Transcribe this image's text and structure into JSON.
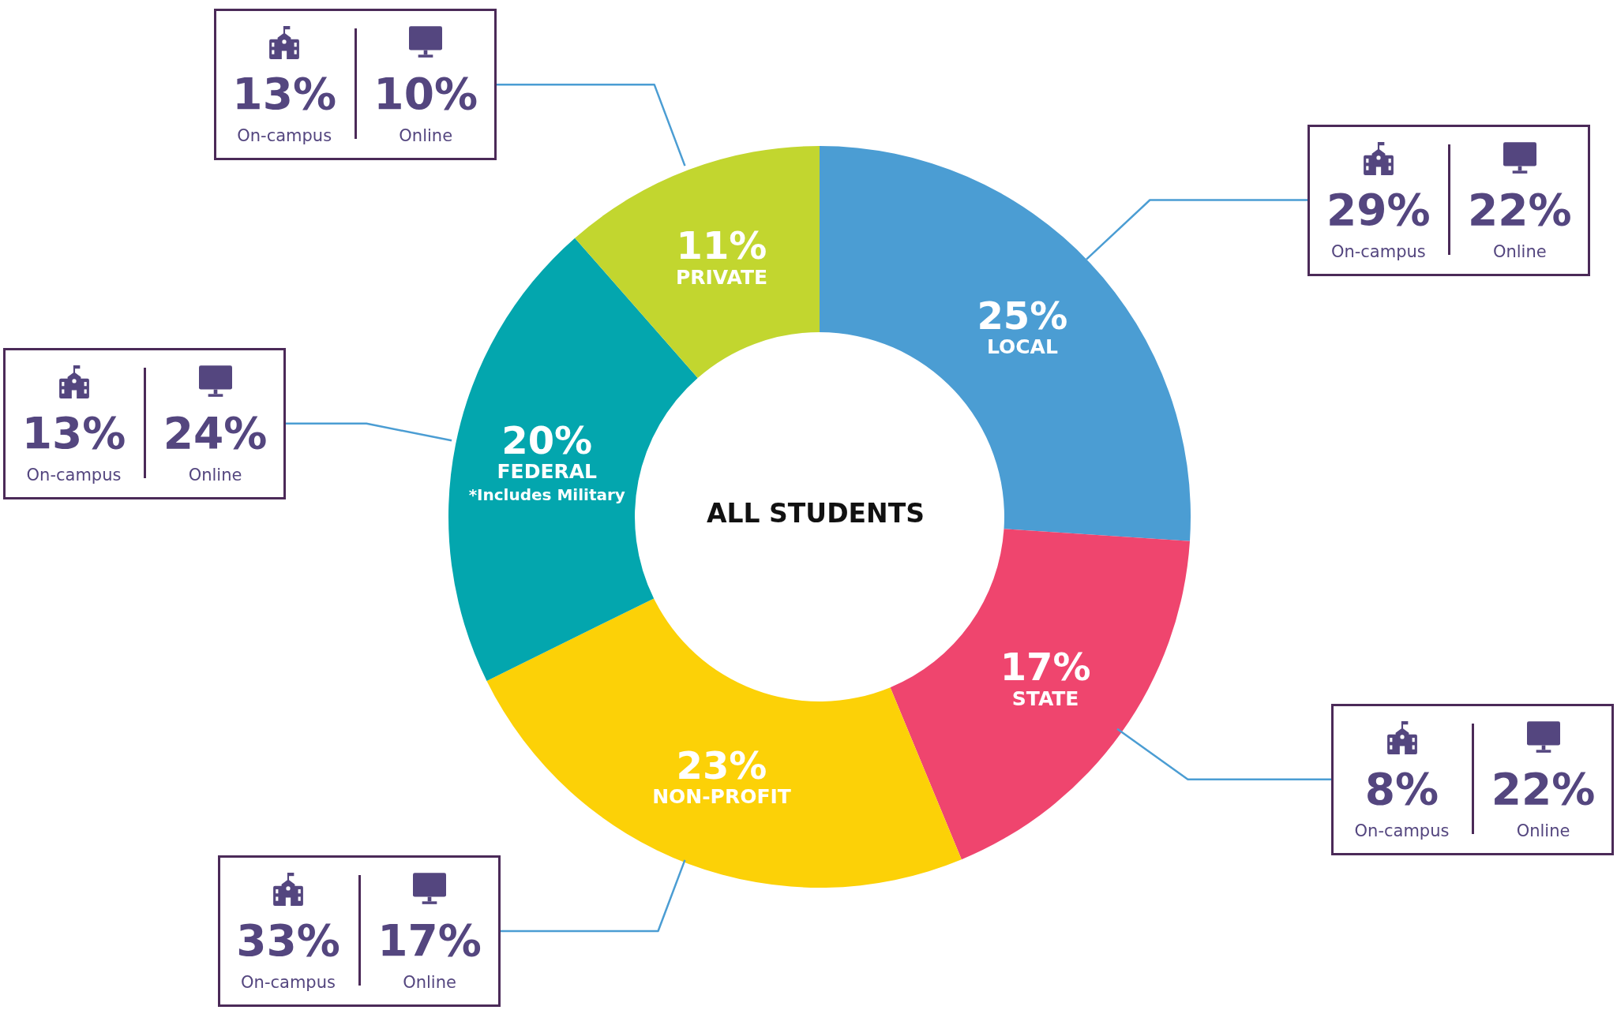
{
  "chart_data": {
    "type": "donut",
    "title": "ALL STUDENTS",
    "categories": [
      "LOCAL",
      "STATE",
      "NON-PROFIT",
      "FEDERAL\n*Includes Military",
      "PRIVATE"
    ],
    "values": [
      25,
      17,
      23,
      20,
      11
    ],
    "value_labels": [
      "25%",
      "17%",
      "23%",
      "20%",
      "11%"
    ],
    "colors": [
      "#4b9dd3",
      "#ef456e",
      "#fcd107",
      "#03a6ae",
      "#c2d62f"
    ],
    "annotations": [
      "29%\nOn-campus",
      "22%\nOnline",
      "8%\nOn-campus",
      "22%\nOnline",
      "33%\nOn-campus",
      "17%\nOnline",
      "13%\nOn-campus",
      "24%\nOnline",
      "13%\nOn-campus",
      "10%\nOnline"
    ]
  }
}
